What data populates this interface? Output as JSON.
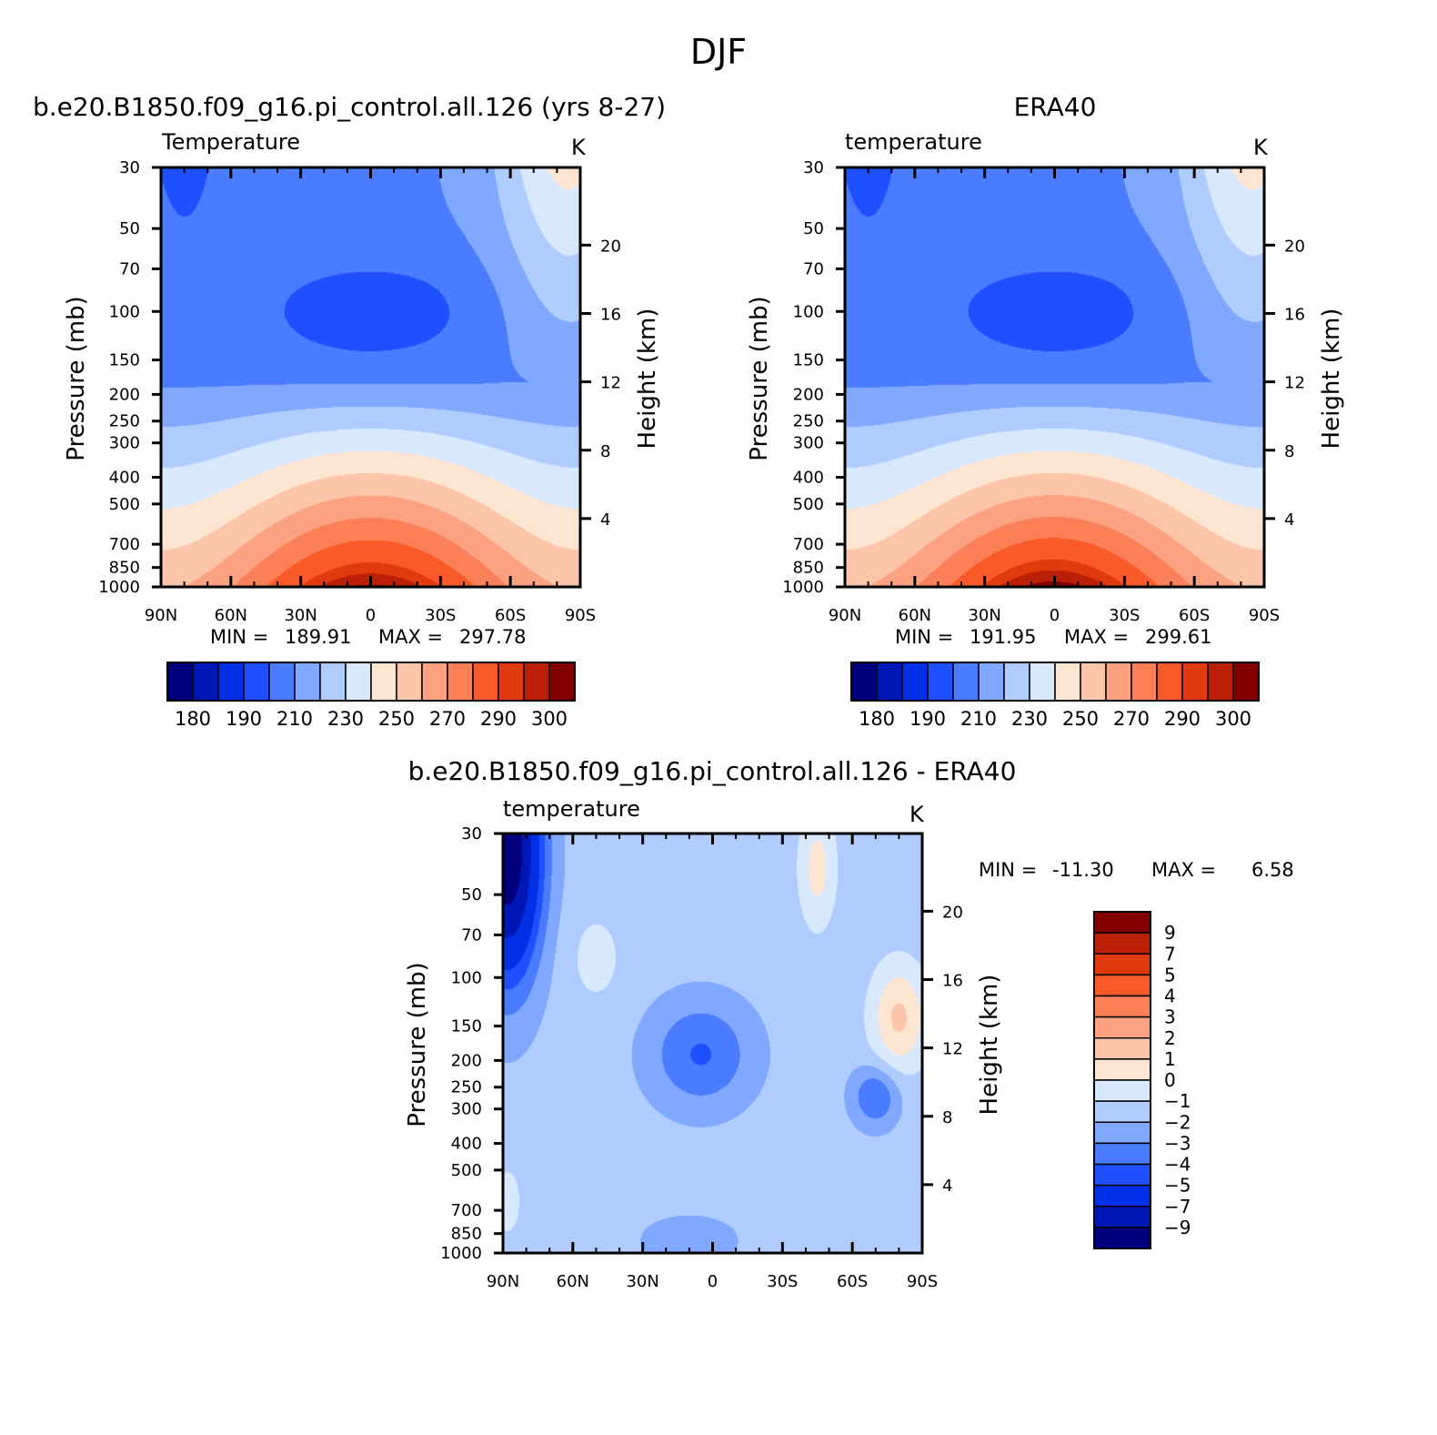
{
  "figure_title": "DJF",
  "chart_data": [
    {
      "type": "heatmap",
      "id": "model",
      "title": "b.e20.B1850.f09_g16.pi_control.all.126 (yrs 8-27)",
      "subtitle": "Temperature",
      "units": "K",
      "ylabel": "Pressure (mb)",
      "ylabel_right": "Height (km)",
      "x_ticks": [
        "90N",
        "60N",
        "30N",
        "0",
        "30S",
        "60S",
        "90S"
      ],
      "x_values": [
        90,
        60,
        30,
        0,
        -30,
        -60,
        -90
      ],
      "p_ticks": [
        30,
        50,
        70,
        100,
        150,
        200,
        250,
        300,
        400,
        500,
        700,
        850,
        1000
      ],
      "height_ticks": [
        20,
        16,
        12,
        8,
        4
      ],
      "stats": {
        "min_label": "MIN =",
        "min": "189.91",
        "max_label": "MAX =",
        "max": "297.78"
      },
      "colorbar": {
        "orientation": "horizontal",
        "labels": [
          "180",
          "190",
          "210",
          "230",
          "250",
          "270",
          "290",
          "300"
        ],
        "colors": [
          "#00007f",
          "#0017b8",
          "#0030e5",
          "#1f50ff",
          "#4a7cff",
          "#80a8ff",
          "#b0ccff",
          "#d7e8ff",
          "#fde5d2",
          "#fcc4a8",
          "#fca281",
          "#fb8058",
          "#fa5a28",
          "#e13a0e",
          "#bb1f05",
          "#820000"
        ]
      }
    },
    {
      "type": "heatmap",
      "id": "obs",
      "title": "ERA40",
      "subtitle": "temperature",
      "units": "K",
      "ylabel": "Pressure (mb)",
      "ylabel_right": "Height (km)",
      "x_ticks": [
        "90N",
        "60N",
        "30N",
        "0",
        "30S",
        "60S",
        "90S"
      ],
      "x_values": [
        90,
        60,
        30,
        0,
        -30,
        -60,
        -90
      ],
      "p_ticks": [
        30,
        50,
        70,
        100,
        150,
        200,
        250,
        300,
        400,
        500,
        700,
        850,
        1000
      ],
      "height_ticks": [
        20,
        16,
        12,
        8,
        4
      ],
      "stats": {
        "min_label": "MIN =",
        "min": "191.95",
        "max_label": "MAX =",
        "max": "299.61"
      },
      "colorbar": {
        "orientation": "horizontal",
        "labels": [
          "180",
          "190",
          "210",
          "230",
          "250",
          "270",
          "290",
          "300"
        ],
        "colors": [
          "#00007f",
          "#0017b8",
          "#0030e5",
          "#1f50ff",
          "#4a7cff",
          "#80a8ff",
          "#b0ccff",
          "#d7e8ff",
          "#fde5d2",
          "#fcc4a8",
          "#fca281",
          "#fb8058",
          "#fa5a28",
          "#e13a0e",
          "#bb1f05",
          "#820000"
        ]
      }
    },
    {
      "type": "heatmap",
      "id": "diff",
      "title": "b.e20.B1850.f09_g16.pi_control.all.126 - ERA40",
      "subtitle": "temperature",
      "units": "K",
      "ylabel": "Pressure (mb)",
      "ylabel_right": "Height (km)",
      "x_ticks": [
        "90N",
        "60N",
        "30N",
        "0",
        "30S",
        "60S",
        "90S"
      ],
      "x_values": [
        90,
        60,
        30,
        0,
        -30,
        -60,
        -90
      ],
      "p_ticks": [
        30,
        50,
        70,
        100,
        150,
        200,
        250,
        300,
        400,
        500,
        700,
        850,
        1000
      ],
      "height_ticks": [
        20,
        16,
        12,
        8,
        4
      ],
      "stats": {
        "min_label": "MIN =",
        "min": "-11.30",
        "max_label": "MAX =",
        "max": "6.58"
      },
      "colorbar": {
        "orientation": "vertical",
        "labels": [
          "9",
          "7",
          "5",
          "4",
          "3",
          "2",
          "1",
          "0",
          "-1",
          "-2",
          "-3",
          "-4",
          "-5",
          "-7",
          "-9"
        ],
        "colors": [
          "#820000",
          "#bb1f05",
          "#e13a0e",
          "#fa5a28",
          "#fb8058",
          "#fca281",
          "#fcc4a8",
          "#fde5d2",
          "#d7e8ff",
          "#b0ccff",
          "#80a8ff",
          "#4a7cff",
          "#1f50ff",
          "#0030e5",
          "#0017b8",
          "#00007f"
        ]
      }
    }
  ]
}
